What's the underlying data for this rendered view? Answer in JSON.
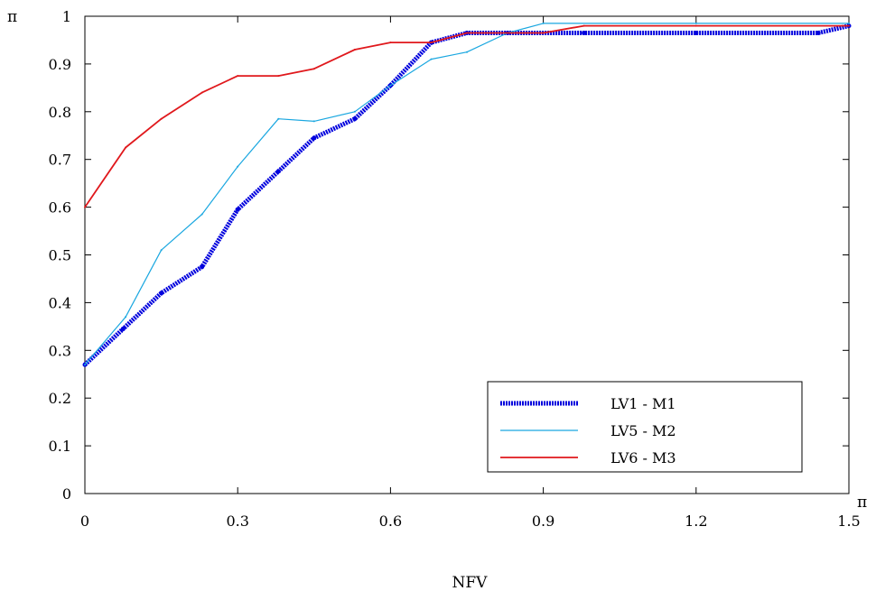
{
  "chart_data": {
    "type": "line",
    "title": "",
    "xlabel": "NFV",
    "ylabel": "π",
    "x_axis_end_label": "π",
    "xlim": [
      0,
      1.5
    ],
    "ylim": [
      0,
      1
    ],
    "x_ticks": [
      0,
      0.3,
      0.6,
      0.9,
      1.2,
      1.5
    ],
    "y_ticks": [
      0,
      0.1,
      0.2,
      0.3,
      0.4,
      0.5,
      0.6,
      0.7,
      0.8,
      0.9,
      1
    ],
    "grid": false,
    "legend_position": "bottom-right",
    "series": [
      {
        "name": "LV1 - M1",
        "color": "#0000dd",
        "style": "thick-dotted",
        "points": [
          [
            0,
            0.27
          ],
          [
            0.075,
            0.345
          ],
          [
            0.15,
            0.42
          ],
          [
            0.23,
            0.475
          ],
          [
            0.3,
            0.595
          ],
          [
            0.38,
            0.675
          ],
          [
            0.45,
            0.745
          ],
          [
            0.53,
            0.785
          ],
          [
            0.6,
            0.855
          ],
          [
            0.68,
            0.945
          ],
          [
            0.75,
            0.965
          ],
          [
            0.83,
            0.965
          ],
          [
            0.98,
            0.965
          ],
          [
            1.2,
            0.965
          ],
          [
            1.44,
            0.965
          ],
          [
            1.5,
            0.98
          ]
        ]
      },
      {
        "name": "LV5 - M2",
        "color": "#1aa7e0",
        "style": "thin",
        "points": [
          [
            0,
            0.27
          ],
          [
            0.08,
            0.37
          ],
          [
            0.15,
            0.51
          ],
          [
            0.23,
            0.585
          ],
          [
            0.3,
            0.685
          ],
          [
            0.38,
            0.785
          ],
          [
            0.45,
            0.78
          ],
          [
            0.53,
            0.8
          ],
          [
            0.6,
            0.855
          ],
          [
            0.68,
            0.91
          ],
          [
            0.75,
            0.925
          ],
          [
            0.83,
            0.965
          ],
          [
            0.9,
            0.985
          ],
          [
            1.2,
            0.985
          ],
          [
            1.5,
            0.985
          ]
        ]
      },
      {
        "name": "LV6 - M3",
        "color": "#e0181c",
        "style": "medium",
        "points": [
          [
            0,
            0.6
          ],
          [
            0.08,
            0.725
          ],
          [
            0.15,
            0.785
          ],
          [
            0.23,
            0.84
          ],
          [
            0.3,
            0.875
          ],
          [
            0.38,
            0.875
          ],
          [
            0.45,
            0.89
          ],
          [
            0.53,
            0.93
          ],
          [
            0.6,
            0.945
          ],
          [
            0.68,
            0.945
          ],
          [
            0.75,
            0.965
          ],
          [
            0.83,
            0.965
          ],
          [
            0.9,
            0.965
          ],
          [
            0.98,
            0.98
          ],
          [
            1.2,
            0.98
          ],
          [
            1.5,
            0.98
          ]
        ]
      }
    ]
  }
}
